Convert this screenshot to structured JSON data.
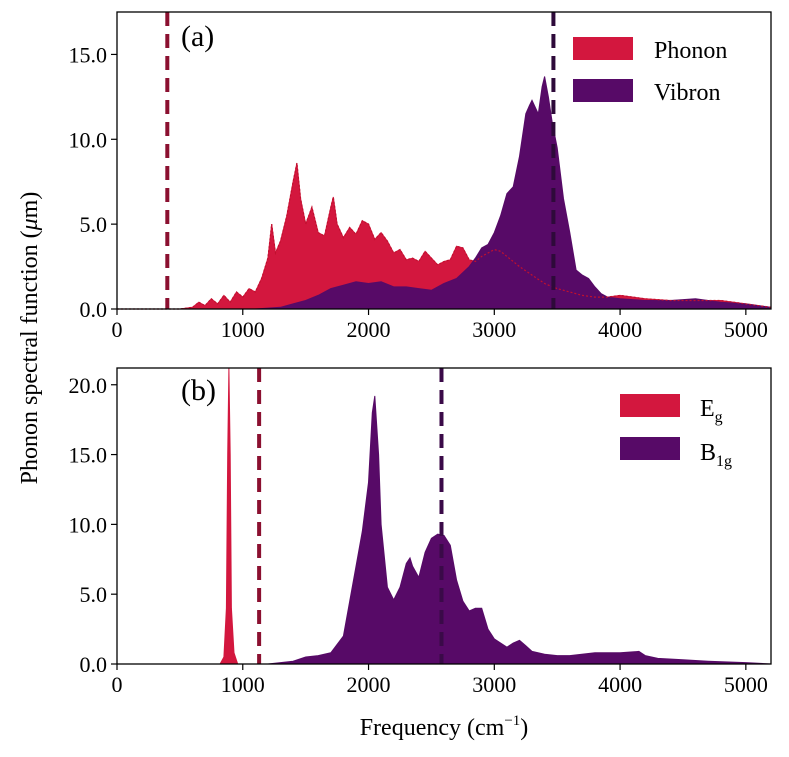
{
  "colors": {
    "phonon": "#d3173e",
    "vibron": "#570a67",
    "vline_a_left": "#8b1030",
    "vline_a_right": "#2e0a3a",
    "vline_b_left": "#8b1030",
    "vline_b_right": "#3a0a48"
  },
  "figure": {
    "ylabel_main": "Phonon spectral function (",
    "ylabel_mu": "μ",
    "ylabel_unit": "m)",
    "xlabel_main": "Frequency (cm",
    "xlabel_sup": "−1",
    "xlabel_close": ")"
  },
  "chart_data": [
    {
      "type": "area",
      "panel_label": "(a)",
      "xlim": [
        0,
        5200
      ],
      "ylim": [
        0,
        17.5
      ],
      "xticks": [
        0,
        1000,
        2000,
        3000,
        4000,
        5000
      ],
      "xtick_labels": [
        "0",
        "1000",
        "2000",
        "3000",
        "4000",
        "5000"
      ],
      "yticks": [
        0,
        5,
        10,
        15
      ],
      "ytick_labels": [
        "0.0",
        "5.0",
        "10.0",
        "15.0"
      ],
      "legend": [
        "Phonon",
        "Vibron"
      ],
      "legend_position": "top-right",
      "vlines": [
        400,
        3470
      ],
      "series": [
        {
          "name": "Phonon",
          "x": [
            0,
            500,
            600,
            650,
            700,
            750,
            800,
            850,
            900,
            950,
            1000,
            1050,
            1100,
            1150,
            1200,
            1230,
            1260,
            1300,
            1350,
            1400,
            1430,
            1460,
            1500,
            1550,
            1600,
            1650,
            1700,
            1720,
            1750,
            1800,
            1850,
            1900,
            1950,
            2000,
            2050,
            2100,
            2150,
            2200,
            2250,
            2300,
            2350,
            2400,
            2450,
            2500,
            2550,
            2600,
            2650,
            2700,
            2750,
            2800,
            2850,
            2900,
            2950,
            3000,
            3050,
            3100,
            3150,
            3200,
            3300,
            3400,
            3500,
            3600,
            3700,
            3800,
            3900,
            4000,
            4200,
            4400,
            4600,
            4800,
            5000,
            5200
          ],
          "values": [
            0,
            0,
            0.1,
            0.4,
            0.2,
            0.6,
            0.3,
            0.8,
            0.4,
            1.0,
            0.7,
            1.2,
            1.0,
            1.8,
            3.0,
            5.0,
            3.3,
            4.0,
            5.5,
            7.5,
            8.6,
            6.5,
            5.0,
            6.0,
            4.5,
            4.3,
            6.0,
            6.6,
            5.0,
            4.2,
            4.8,
            4.4,
            5.2,
            5.0,
            4.1,
            4.5,
            4.0,
            3.3,
            3.5,
            2.9,
            3.0,
            2.8,
            3.4,
            3.0,
            2.6,
            2.8,
            2.9,
            3.7,
            3.6,
            2.9,
            2.8,
            3.1,
            3.3,
            3.5,
            3.4,
            3.1,
            2.8,
            2.5,
            2.0,
            1.5,
            1.2,
            1.0,
            0.8,
            0.7,
            0.7,
            0.8,
            0.6,
            0.5,
            0.5,
            0.5,
            0.3,
            0.1
          ]
        },
        {
          "name": "Vibron",
          "x": [
            0,
            1100,
            1300,
            1400,
            1500,
            1600,
            1700,
            1800,
            1900,
            2000,
            2100,
            2200,
            2300,
            2400,
            2500,
            2600,
            2700,
            2800,
            2850,
            2900,
            2950,
            3000,
            3050,
            3100,
            3150,
            3200,
            3250,
            3280,
            3300,
            3350,
            3380,
            3400,
            3430,
            3460,
            3500,
            3550,
            3600,
            3650,
            3700,
            3750,
            3800,
            3850,
            3900,
            4000,
            4200,
            4400,
            4600,
            4800,
            5000,
            5200
          ],
          "values": [
            0,
            0,
            0.1,
            0.3,
            0.5,
            0.8,
            1.2,
            1.4,
            1.6,
            1.5,
            1.6,
            1.3,
            1.3,
            1.2,
            1.1,
            1.5,
            1.8,
            2.5,
            3.0,
            3.6,
            3.8,
            4.5,
            5.5,
            6.8,
            7.2,
            9.0,
            11.5,
            12.0,
            12.3,
            11.5,
            13.1,
            13.7,
            12.5,
            11.0,
            9.5,
            6.5,
            4.5,
            2.3,
            2.0,
            1.8,
            1.3,
            0.9,
            0.7,
            0.6,
            0.5,
            0.5,
            0.6,
            0.4,
            0.3,
            0.1
          ]
        }
      ]
    },
    {
      "type": "area",
      "panel_label": "(b)",
      "xlim": [
        0,
        5200
      ],
      "ylim": [
        0,
        21.2
      ],
      "xticks": [
        0,
        1000,
        2000,
        3000,
        4000,
        5000
      ],
      "xtick_labels": [
        "0",
        "1000",
        "2000",
        "3000",
        "4000",
        "5000"
      ],
      "yticks": [
        0,
        5,
        10,
        15,
        20
      ],
      "ytick_labels": [
        "0.0",
        "5.0",
        "10.0",
        "15.0",
        "20.0"
      ],
      "legend_base": [
        "E",
        "B"
      ],
      "legend_sub": [
        "g",
        "1g"
      ],
      "legend_position": "top-right",
      "vlines": [
        1130,
        2580
      ],
      "series": [
        {
          "name": "Eg",
          "x": [
            0,
            820,
            850,
            870,
            880,
            890,
            900,
            910,
            930,
            960,
            5200
          ],
          "values": [
            0,
            0,
            0.5,
            4.0,
            15.0,
            21.2,
            15.0,
            4.0,
            0.8,
            0,
            0
          ]
        },
        {
          "name": "B1g",
          "x": [
            0,
            1200,
            1400,
            1500,
            1600,
            1700,
            1800,
            1850,
            1900,
            1950,
            2000,
            2030,
            2050,
            2080,
            2100,
            2150,
            2200,
            2250,
            2300,
            2330,
            2350,
            2400,
            2450,
            2500,
            2550,
            2600,
            2650,
            2700,
            2750,
            2800,
            2850,
            2900,
            2950,
            3000,
            3100,
            3150,
            3200,
            3250,
            3300,
            3400,
            3500,
            3600,
            3800,
            4000,
            4150,
            4200,
            4300,
            4500,
            4700,
            5000,
            5200
          ],
          "values": [
            0,
            0,
            0.2,
            0.5,
            0.6,
            0.8,
            2.0,
            4.5,
            7.0,
            9.5,
            13.0,
            18.0,
            19.2,
            15.0,
            10.0,
            5.5,
            4.6,
            5.5,
            7.2,
            7.6,
            7.0,
            6.2,
            8.0,
            9.0,
            9.3,
            9.2,
            8.5,
            6.0,
            4.5,
            3.8,
            4.0,
            4.0,
            2.5,
            1.8,
            1.2,
            1.5,
            1.7,
            1.3,
            0.9,
            0.7,
            0.6,
            0.6,
            0.8,
            0.8,
            0.9,
            0.6,
            0.4,
            0.3,
            0.2,
            0.1,
            0
          ]
        }
      ]
    }
  ]
}
